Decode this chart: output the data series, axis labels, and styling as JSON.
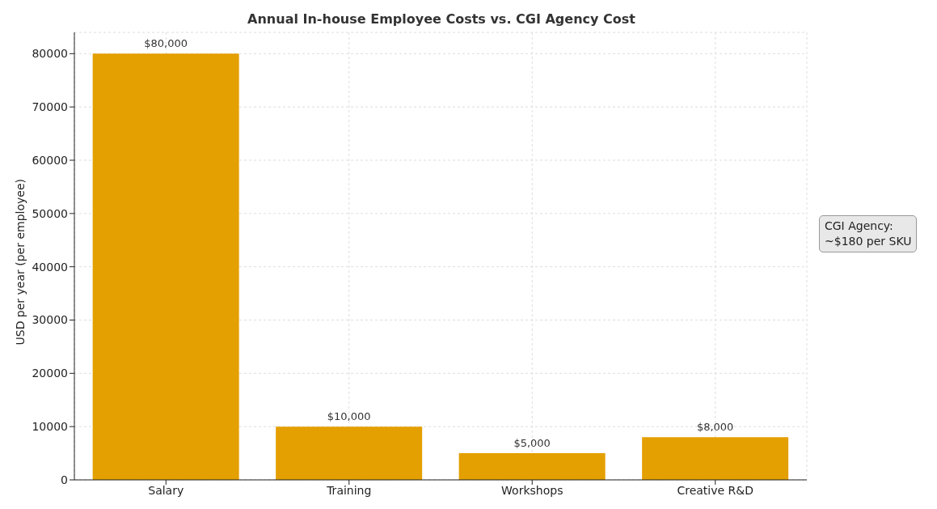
{
  "chart_data": {
    "type": "bar",
    "title": "Annual In-house Employee Costs vs. CGI Agency Cost",
    "ylabel": "USD per year (per employee)",
    "categories": [
      "Salary",
      "Training",
      "Workshops",
      "Creative R&D"
    ],
    "values": [
      80000,
      10000,
      5000,
      8000
    ],
    "color": "#e49f00",
    "value_labels": [
      "$80,000",
      "$10,000",
      "$5,000",
      "$8,000"
    ],
    "ylim": [
      0,
      84000
    ],
    "yticks": [
      0,
      10000,
      20000,
      30000,
      40000,
      50000,
      60000,
      70000,
      80000
    ],
    "grid": true,
    "annotations": [
      "CGI Agency:\n~$180 per SKU"
    ]
  }
}
